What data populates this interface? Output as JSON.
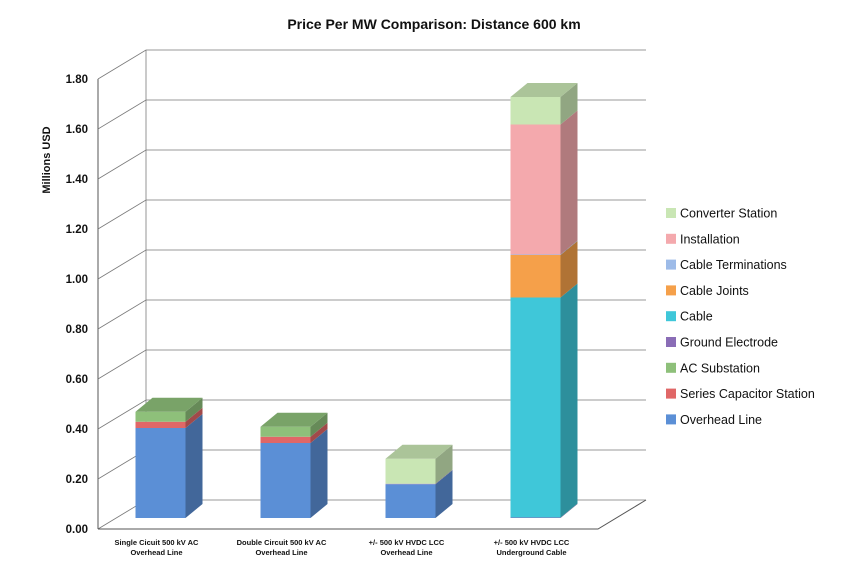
{
  "chart_data": {
    "type": "bar",
    "stacked": true,
    "three_d": true,
    "title": "Price Per MW Comparison: Distance 600 km",
    "xlabel": "",
    "ylabel": "Millions USD",
    "ylim": [
      0,
      1.8
    ],
    "yticks": [
      "0.00",
      "0.20",
      "0.40",
      "0.60",
      "0.80",
      "1.00",
      "1.20",
      "1.40",
      "1.60",
      "1.80"
    ],
    "grid": true,
    "legend_position": "right",
    "categories": [
      [
        "Single Cicuit 500 kV AC",
        "Overhead Line"
      ],
      [
        "Double Circuit 500 kV AC",
        "Overhead Line"
      ],
      [
        "+/- 500 kV HVDC LCC",
        "Overhead Line"
      ],
      [
        "+/- 500 kV HVDC LCC",
        "Underground Cable"
      ]
    ],
    "series": [
      {
        "name": "Overhead Line",
        "color": "#5b8fd6",
        "values": [
          0.36,
          0.3,
          0.135,
          0
        ]
      },
      {
        "name": "Series Capacitor Station",
        "color": "#e06767",
        "values": [
          0.025,
          0.025,
          0,
          0
        ]
      },
      {
        "name": "AC Substation",
        "color": "#8ec07a",
        "values": [
          0.04,
          0.04,
          0,
          0
        ]
      },
      {
        "name": "Ground Electrode",
        "color": "#8a6db6",
        "values": [
          0,
          0,
          0.002,
          0.002
        ]
      },
      {
        "name": "Cable",
        "color": "#3fc7d9",
        "values": [
          0,
          0,
          0,
          0.88
        ]
      },
      {
        "name": "Cable Joints",
        "color": "#f5a04a",
        "values": [
          0,
          0,
          0,
          0.17
        ]
      },
      {
        "name": "Cable Terminations",
        "color": "#9dbbe8",
        "values": [
          0,
          0,
          0,
          0.002
        ]
      },
      {
        "name": "Installation",
        "color": "#f4a9ad",
        "values": [
          0,
          0,
          0,
          0.52
        ]
      },
      {
        "name": "Converter Station",
        "color": "#c9e6b4",
        "values": [
          0,
          0,
          0.1,
          0.11
        ]
      }
    ]
  }
}
